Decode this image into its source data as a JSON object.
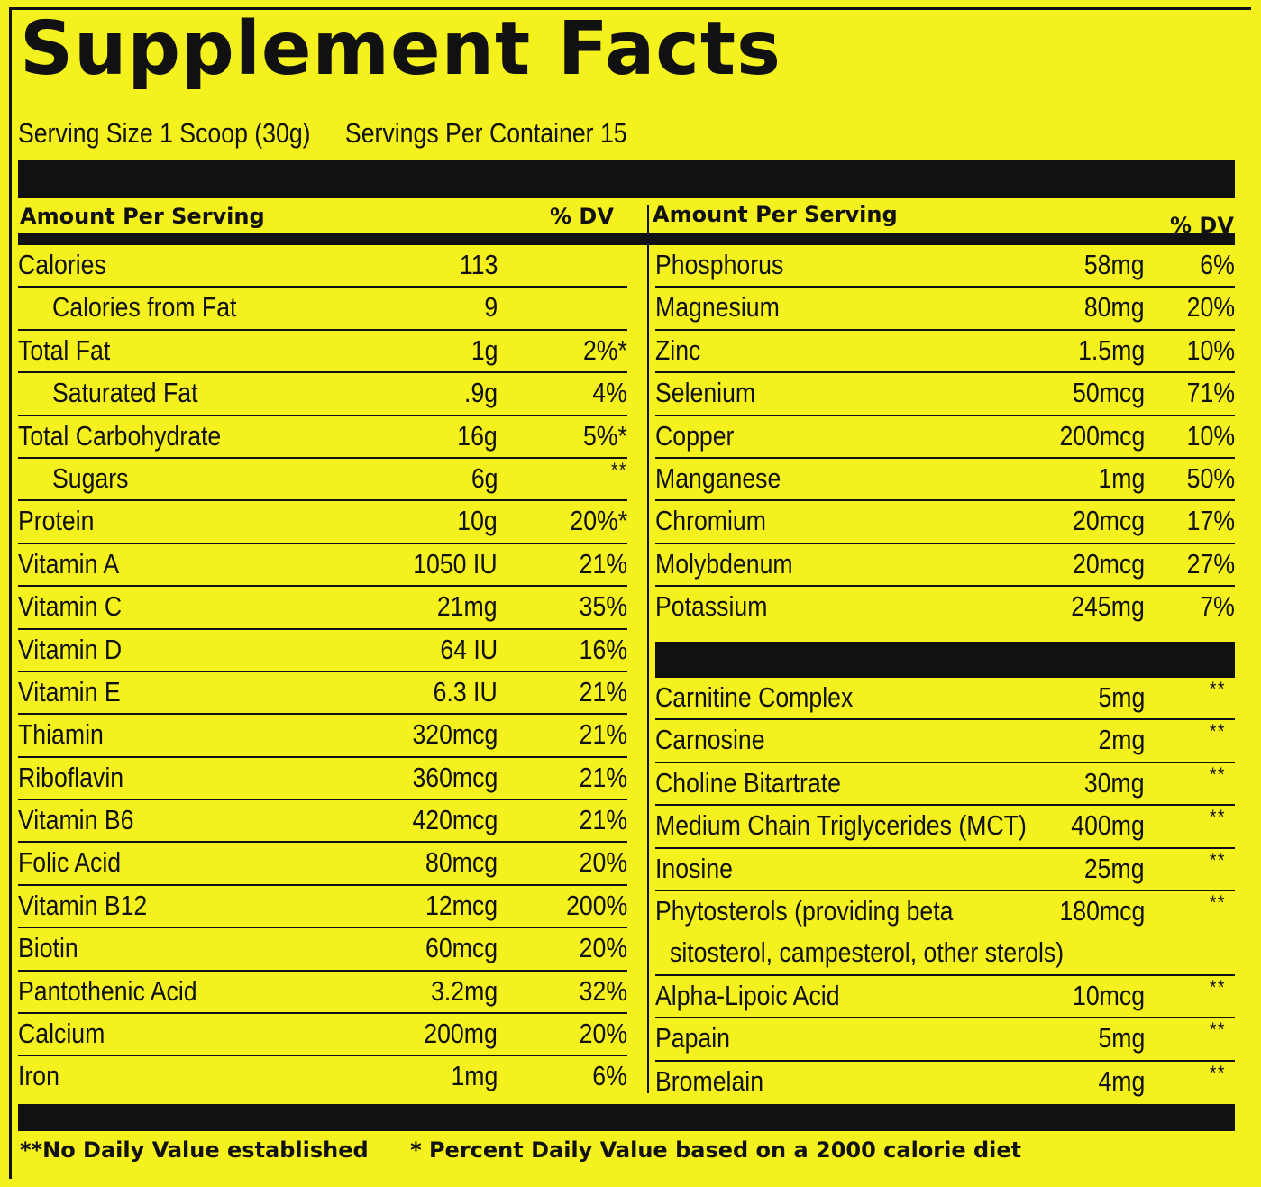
{
  "title": "Supplement Facts",
  "serving_size": "Serving Size 1 Scoop (30g)",
  "servings_per_container": "Servings Per Container 15",
  "header_amount": "Amount Per Serving",
  "header_dv": "% DV",
  "left_rows": [
    {
      "name": "Calories",
      "amount": "113",
      "dv": ""
    },
    {
      "name": "Calories from Fat",
      "amount": "9",
      "dv": "",
      "indent": true
    },
    {
      "name": "Total Fat",
      "amount": "1g",
      "dv": "2%*"
    },
    {
      "name": "Saturated Fat",
      "amount": ".9g",
      "dv": "4%",
      "indent": true
    },
    {
      "name": "Total Carbohydrate",
      "amount": "16g",
      "dv": "5%*"
    },
    {
      "name": "Sugars",
      "amount": "6g",
      "dv": "**",
      "indent": true
    },
    {
      "name": "Protein",
      "amount": "10g",
      "dv": "20%*"
    },
    {
      "name": "Vitamin A",
      "amount": "1050 IU",
      "dv": "21%"
    },
    {
      "name": "Vitamin C",
      "amount": "21mg",
      "dv": "35%"
    },
    {
      "name": "Vitamin D",
      "amount": "64 IU",
      "dv": "16%"
    },
    {
      "name": "Vitamin E",
      "amount": "6.3 IU",
      "dv": "21%"
    },
    {
      "name": "Thiamin",
      "amount": "320mcg",
      "dv": "21%"
    },
    {
      "name": "Riboflavin",
      "amount": "360mcg",
      "dv": "21%"
    },
    {
      "name": "Vitamin B6",
      "amount": "420mcg",
      "dv": "21%"
    },
    {
      "name": "Folic Acid",
      "amount": "80mcg",
      "dv": "20%"
    },
    {
      "name": "Vitamin B12",
      "amount": "12mcg",
      "dv": "200%"
    },
    {
      "name": "Biotin",
      "amount": "60mcg",
      "dv": "20%"
    },
    {
      "name": "Pantothenic Acid",
      "amount": "3.2mg",
      "dv": "32%"
    },
    {
      "name": "Calcium",
      "amount": "200mg",
      "dv": "20%"
    },
    {
      "name": "Iron",
      "amount": "1mg",
      "dv": "6%"
    }
  ],
  "right_rows_top": [
    {
      "name": "Phosphorus",
      "amount": "58mg",
      "dv": "6%"
    },
    {
      "name": "Magnesium",
      "amount": "80mg",
      "dv": "20%"
    },
    {
      "name": "Zinc",
      "amount": "1.5mg",
      "dv": "10%"
    },
    {
      "name": "Selenium",
      "amount": "50mcg",
      "dv": "71%"
    },
    {
      "name": "Copper",
      "amount": "200mcg",
      "dv": "10%"
    },
    {
      "name": "Manganese",
      "amount": "1mg",
      "dv": "50%"
    },
    {
      "name": "Chromium",
      "amount": "20mcg",
      "dv": "17%"
    },
    {
      "name": "Molybdenum",
      "amount": "20mcg",
      "dv": "27%"
    },
    {
      "name": "Potassium",
      "amount": "245mg",
      "dv": "7%"
    }
  ],
  "right_rows_bottom": [
    {
      "name": "Carnitine Complex",
      "amount": "5mg",
      "dv": "**"
    },
    {
      "name": "Carnosine",
      "amount": "2mg",
      "dv": "**"
    },
    {
      "name": "Choline Bitartrate",
      "amount": "30mg",
      "dv": "**"
    },
    {
      "name": "Medium Chain Triglycerides (MCT)",
      "amount": "400mg",
      "dv": "**"
    },
    {
      "name": "Inosine",
      "amount": "25mg",
      "dv": "**"
    },
    {
      "name": "Phytosterols (providing beta",
      "name2": "sitosterol, campesterol, other sterols)",
      "amount": "180mcg",
      "dv": "**"
    },
    {
      "name": "Alpha-Lipoic Acid",
      "amount": "10mcg",
      "dv": "**"
    },
    {
      "name": "Papain",
      "amount": "5mg",
      "dv": "**"
    },
    {
      "name": "Bromelain",
      "amount": "4mg",
      "dv": "**"
    }
  ],
  "footnote_no_dv": "**No Daily Value established",
  "footnote_percent": "* Percent Daily Value based on a 2000 calorie diet"
}
